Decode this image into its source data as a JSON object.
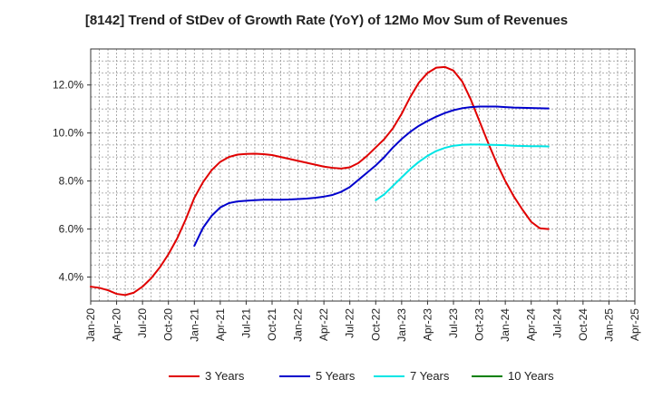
{
  "chart_data": {
    "type": "line",
    "title": "[8142]  Trend of StDev of Growth Rate (YoY) of 12Mo Mov Sum of Revenues",
    "xlabel": "",
    "ylabel": "",
    "x_ticks": [
      "Jan-20",
      "Apr-20",
      "Jul-20",
      "Oct-20",
      "Jan-21",
      "Apr-21",
      "Jul-21",
      "Oct-21",
      "Jan-22",
      "Apr-22",
      "Jul-22",
      "Oct-22",
      "Jan-23",
      "Apr-23",
      "Jul-23",
      "Oct-23",
      "Jan-24",
      "Apr-24",
      "Jul-24",
      "Oct-24",
      "Jan-25",
      "Apr-25"
    ],
    "y_ticks": [
      "4.0%",
      "6.0%",
      "8.0%",
      "10.0%",
      "12.0%"
    ],
    "y_tick_values": [
      4,
      6,
      8,
      10,
      12
    ],
    "ylim": [
      3.0,
      13.5
    ],
    "series": [
      {
        "name": "3 Years",
        "color": "#e00000",
        "values": [
          [
            0,
            3.6
          ],
          [
            1,
            3.55
          ],
          [
            2,
            3.45
          ],
          [
            3,
            3.3
          ],
          [
            4,
            3.25
          ],
          [
            5,
            3.35
          ],
          [
            6,
            3.6
          ],
          [
            7,
            3.95
          ],
          [
            8,
            4.4
          ],
          [
            9,
            4.95
          ],
          [
            10,
            5.6
          ],
          [
            11,
            6.4
          ],
          [
            12,
            7.3
          ],
          [
            13,
            7.95
          ],
          [
            14,
            8.45
          ],
          [
            15,
            8.8
          ],
          [
            16,
            9.0
          ],
          [
            17,
            9.1
          ],
          [
            18,
            9.13
          ],
          [
            19,
            9.14
          ],
          [
            20,
            9.12
          ],
          [
            21,
            9.08
          ],
          [
            22,
            9.0
          ],
          [
            23,
            8.92
          ],
          [
            24,
            8.84
          ],
          [
            25,
            8.76
          ],
          [
            26,
            8.68
          ],
          [
            27,
            8.6
          ],
          [
            28,
            8.55
          ],
          [
            29,
            8.52
          ],
          [
            30,
            8.57
          ],
          [
            31,
            8.75
          ],
          [
            32,
            9.05
          ],
          [
            33,
            9.4
          ],
          [
            34,
            9.75
          ],
          [
            35,
            10.2
          ],
          [
            36,
            10.8
          ],
          [
            37,
            11.5
          ],
          [
            38,
            12.1
          ],
          [
            39,
            12.5
          ],
          [
            40,
            12.72
          ],
          [
            41,
            12.75
          ],
          [
            42,
            12.6
          ],
          [
            43,
            12.15
          ],
          [
            44,
            11.4
          ],
          [
            45,
            10.5
          ],
          [
            46,
            9.6
          ],
          [
            47,
            8.75
          ],
          [
            48,
            8.0
          ],
          [
            49,
            7.35
          ],
          [
            50,
            6.8
          ],
          [
            51,
            6.3
          ],
          [
            52,
            6.03
          ],
          [
            53,
            6.0
          ]
        ]
      },
      {
        "name": "5 Years",
        "color": "#0000cc",
        "values": [
          [
            12,
            5.3
          ],
          [
            13,
            6.05
          ],
          [
            14,
            6.55
          ],
          [
            15,
            6.9
          ],
          [
            16,
            7.08
          ],
          [
            17,
            7.15
          ],
          [
            18,
            7.18
          ],
          [
            19,
            7.2
          ],
          [
            20,
            7.22
          ],
          [
            21,
            7.22
          ],
          [
            22,
            7.22
          ],
          [
            23,
            7.23
          ],
          [
            24,
            7.25
          ],
          [
            25,
            7.27
          ],
          [
            26,
            7.3
          ],
          [
            27,
            7.35
          ],
          [
            28,
            7.42
          ],
          [
            29,
            7.55
          ],
          [
            30,
            7.75
          ],
          [
            31,
            8.05
          ],
          [
            32,
            8.35
          ],
          [
            33,
            8.65
          ],
          [
            34,
            9.0
          ],
          [
            35,
            9.4
          ],
          [
            36,
            9.75
          ],
          [
            37,
            10.05
          ],
          [
            38,
            10.3
          ],
          [
            39,
            10.5
          ],
          [
            40,
            10.68
          ],
          [
            41,
            10.83
          ],
          [
            42,
            10.95
          ],
          [
            43,
            11.03
          ],
          [
            44,
            11.08
          ],
          [
            45,
            11.1
          ],
          [
            46,
            11.1
          ],
          [
            47,
            11.1
          ],
          [
            48,
            11.08
          ],
          [
            49,
            11.06
          ],
          [
            50,
            11.05
          ],
          [
            51,
            11.04
          ],
          [
            52,
            11.03
          ],
          [
            53,
            11.02
          ]
        ]
      },
      {
        "name": "7 Years",
        "color": "#00e5e5",
        "values": [
          [
            33,
            7.2
          ],
          [
            34,
            7.45
          ],
          [
            35,
            7.8
          ],
          [
            36,
            8.15
          ],
          [
            37,
            8.5
          ],
          [
            38,
            8.8
          ],
          [
            39,
            9.05
          ],
          [
            40,
            9.25
          ],
          [
            41,
            9.38
          ],
          [
            42,
            9.47
          ],
          [
            43,
            9.51
          ],
          [
            44,
            9.52
          ],
          [
            45,
            9.52
          ],
          [
            46,
            9.51
          ],
          [
            47,
            9.5
          ],
          [
            48,
            9.49
          ],
          [
            49,
            9.47
          ],
          [
            50,
            9.46
          ],
          [
            51,
            9.45
          ],
          [
            52,
            9.45
          ],
          [
            53,
            9.44
          ]
        ]
      },
      {
        "name": "10 Years",
        "color": "#008000",
        "values": []
      }
    ]
  }
}
